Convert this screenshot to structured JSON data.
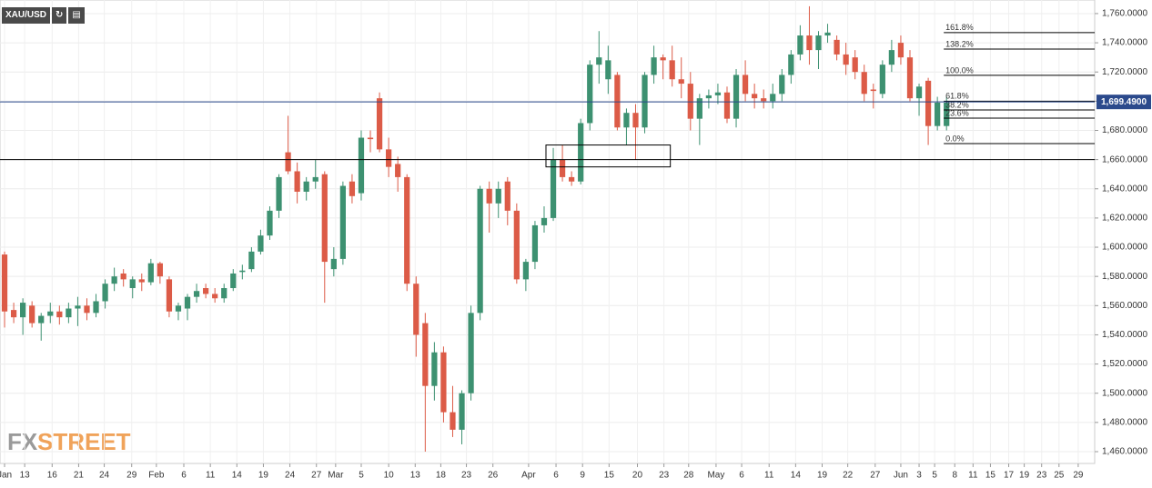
{
  "toolbar": {
    "symbol": "XAU/USD"
  },
  "watermark": [
    "FX",
    "STREET"
  ],
  "chart_data": {
    "type": "candlestick",
    "up_color": "#3d9171",
    "down_color": "#dc5b47",
    "candles": {
      "open": [
        1595,
        1557,
        1552,
        1560,
        1548,
        1553,
        1556,
        1552,
        1558,
        1560,
        1555,
        1563,
        1575,
        1582,
        1572,
        1578,
        1576,
        1589,
        1578,
        1556,
        1558,
        1566,
        1572,
        1568,
        1565,
        1572,
        1583,
        1585,
        1597,
        1608,
        1625,
        1665,
        1652,
        1638,
        1645,
        1650,
        1585,
        1592,
        1645,
        1637,
        1675,
        1702,
        1667,
        1657,
        1648,
        1575,
        1548,
        1505,
        1528,
        1487,
        1475,
        1500,
        1555,
        1640,
        1630,
        1645,
        1625,
        1578,
        1590,
        1615,
        1620,
        1660,
        1648,
        1645,
        1685,
        1725,
        1715,
        1718,
        1682,
        1692,
        1682,
        1718,
        1730,
        1728,
        1715,
        1712,
        1688,
        1702,
        1704,
        1706,
        1688,
        1718,
        1705,
        1702,
        1700,
        1705,
        1718,
        1732,
        1745,
        1735,
        1745,
        1742,
        1732,
        1730,
        1720,
        1708,
        1705,
        1725,
        1740,
        1730,
        1702,
        1714,
        1683,
        1683
      ],
      "high": [
        1597,
        1562,
        1565,
        1563,
        1555,
        1562,
        1560,
        1562,
        1566,
        1565,
        1568,
        1578,
        1586,
        1585,
        1580,
        1582,
        1592,
        1590,
        1580,
        1562,
        1568,
        1575,
        1575,
        1572,
        1575,
        1585,
        1588,
        1600,
        1612,
        1628,
        1650,
        1690,
        1658,
        1648,
        1660,
        1652,
        1600,
        1645,
        1650,
        1680,
        1680,
        1706,
        1675,
        1662,
        1650,
        1580,
        1555,
        1535,
        1532,
        1505,
        1502,
        1560,
        1642,
        1645,
        1645,
        1648,
        1630,
        1592,
        1618,
        1628,
        1668,
        1670,
        1652,
        1688,
        1728,
        1748,
        1738,
        1720,
        1695,
        1698,
        1720,
        1738,
        1732,
        1738,
        1730,
        1720,
        1705,
        1708,
        1712,
        1710,
        1722,
        1728,
        1712,
        1708,
        1712,
        1722,
        1735,
        1752,
        1765,
        1748,
        1753,
        1745,
        1740,
        1735,
        1725,
        1712,
        1728,
        1742,
        1745,
        1735,
        1712,
        1716,
        1703,
        1703
      ],
      "low": [
        1545,
        1548,
        1540,
        1545,
        1536,
        1548,
        1547,
        1548,
        1546,
        1550,
        1552,
        1558,
        1570,
        1573,
        1565,
        1570,
        1574,
        1575,
        1552,
        1550,
        1550,
        1562,
        1565,
        1562,
        1562,
        1570,
        1578,
        1583,
        1595,
        1605,
        1620,
        1650,
        1630,
        1632,
        1640,
        1562,
        1580,
        1588,
        1630,
        1632,
        1665,
        1665,
        1648,
        1638,
        1570,
        1525,
        1460,
        1495,
        1480,
        1470,
        1465,
        1495,
        1550,
        1610,
        1620,
        1615,
        1575,
        1570,
        1585,
        1610,
        1618,
        1645,
        1642,
        1643,
        1680,
        1712,
        1705,
        1680,
        1670,
        1660,
        1678,
        1712,
        1715,
        1710,
        1702,
        1680,
        1670,
        1695,
        1698,
        1685,
        1682,
        1700,
        1695,
        1695,
        1695,
        1700,
        1712,
        1728,
        1725,
        1722,
        1740,
        1728,
        1718,
        1715,
        1700,
        1695,
        1702,
        1720,
        1725,
        1700,
        1690,
        1670,
        1680,
        1680
      ],
      "close": [
        1556,
        1552,
        1562,
        1548,
        1553,
        1556,
        1552,
        1558,
        1560,
        1555,
        1563,
        1575,
        1580,
        1578,
        1578,
        1576,
        1589,
        1580,
        1556,
        1560,
        1566,
        1570,
        1568,
        1565,
        1572,
        1582,
        1584,
        1597,
        1608,
        1625,
        1648,
        1652,
        1638,
        1645,
        1648,
        1590,
        1592,
        1642,
        1635,
        1675,
        1674,
        1667,
        1655,
        1648,
        1575,
        1540,
        1505,
        1528,
        1487,
        1475,
        1500,
        1555,
        1640,
        1630,
        1640,
        1625,
        1578,
        1590,
        1615,
        1620,
        1660,
        1648,
        1645,
        1685,
        1725,
        1730,
        1728,
        1682,
        1692,
        1682,
        1718,
        1730,
        1728,
        1715,
        1712,
        1688,
        1702,
        1704,
        1706,
        1688,
        1718,
        1705,
        1702,
        1700,
        1705,
        1718,
        1732,
        1745,
        1735,
        1745,
        1747,
        1732,
        1725,
        1720,
        1705,
        1707,
        1725,
        1735,
        1730,
        1702,
        1710,
        1683,
        1699,
        1699
      ]
    },
    "xlim": [
      -0.5,
      119.2
    ],
    "xticks": [
      {
        "value": 0,
        "label": "Jan"
      },
      {
        "value": 2.2,
        "label": "13"
      },
      {
        "value": 5.2,
        "label": "16"
      },
      {
        "value": 8.1,
        "label": "21"
      },
      {
        "value": 10.9,
        "label": "24"
      },
      {
        "value": 13.9,
        "label": "29"
      },
      {
        "value": 16.6,
        "label": "Feb"
      },
      {
        "value": 19.6,
        "label": "6"
      },
      {
        "value": 22.5,
        "label": "11"
      },
      {
        "value": 25.4,
        "label": "14"
      },
      {
        "value": 28.3,
        "label": "19"
      },
      {
        "value": 31.2,
        "label": "24"
      },
      {
        "value": 34.1,
        "label": "27"
      },
      {
        "value": 36.2,
        "label": "Mar"
      },
      {
        "value": 39,
        "label": "5"
      },
      {
        "value": 42,
        "label": "10"
      },
      {
        "value": 44.9,
        "label": "13"
      },
      {
        "value": 47.7,
        "label": "18"
      },
      {
        "value": 50.5,
        "label": "23"
      },
      {
        "value": 53.4,
        "label": "26"
      },
      {
        "value": 57.3,
        "label": "Apr"
      },
      {
        "value": 60.3,
        "label": "6"
      },
      {
        "value": 63.2,
        "label": "9"
      },
      {
        "value": 66.1,
        "label": "15"
      },
      {
        "value": 69.2,
        "label": "20"
      },
      {
        "value": 72.1,
        "label": "23"
      },
      {
        "value": 74.8,
        "label": "28"
      },
      {
        "value": 77.8,
        "label": "May"
      },
      {
        "value": 80.6,
        "label": "6"
      },
      {
        "value": 83.6,
        "label": "11"
      },
      {
        "value": 86.5,
        "label": "14"
      },
      {
        "value": 89.4,
        "label": "19"
      },
      {
        "value": 92.2,
        "label": "22"
      },
      {
        "value": 95.2,
        "label": "27"
      },
      {
        "value": 98,
        "label": "Jun"
      },
      {
        "value": 100,
        "label": "3"
      },
      {
        "value": 101.7,
        "label": "5"
      },
      {
        "value": 103.9,
        "label": "8"
      },
      {
        "value": 105.9,
        "label": "11"
      },
      {
        "value": 107.8,
        "label": "15"
      },
      {
        "value": 109.8,
        "label": "17"
      },
      {
        "value": 111.5,
        "label": "19"
      },
      {
        "value": 113.4,
        "label": "23"
      },
      {
        "value": 115.3,
        "label": "25"
      },
      {
        "value": 117.4,
        "label": "29"
      }
    ],
    "ylim": [
      1451.9,
      1769.3
    ],
    "yticks": [
      {
        "value": 1460,
        "label": "1,460.0000"
      },
      {
        "value": 1480,
        "label": "1,480.0000"
      },
      {
        "value": 1500,
        "label": "1,500.0000"
      },
      {
        "value": 1520,
        "label": "1,520.0000"
      },
      {
        "value": 1540,
        "label": "1,540.0000"
      },
      {
        "value": 1560,
        "label": "1,560.0000"
      },
      {
        "value": 1580,
        "label": "1,580.0000"
      },
      {
        "value": 1600,
        "label": "1,600.0000"
      },
      {
        "value": 1620,
        "label": "1,620.0000"
      },
      {
        "value": 1640,
        "label": "1,640.0000"
      },
      {
        "value": 1660,
        "label": "1,660.0000"
      },
      {
        "value": 1680,
        "label": "1,680.0000"
      },
      {
        "value": 1700,
        "label": "1,700.0000"
      },
      {
        "value": 1720,
        "label": "1,720.0000"
      },
      {
        "value": 1740,
        "label": "1,740.0000"
      },
      {
        "value": 1760,
        "label": "1,760.0000"
      }
    ],
    "grid": true,
    "price_line": {
      "value": 1699.49,
      "label": "1,699.4900",
      "color": "#2b4a8c"
    },
    "support_line": {
      "value": 1660,
      "color": "#000000"
    },
    "box": {
      "x": [
        59.2,
        72.8
      ],
      "y": [
        1655,
        1670
      ]
    },
    "fib_start": 102.7,
    "fib_levels": [
      {
        "value": 1747,
        "label": "161.8%"
      },
      {
        "value": 1735.7,
        "label": "138.2%"
      },
      {
        "value": 1717.7,
        "label": "100.0%"
      },
      {
        "value": 1700,
        "label": "61.8%"
      },
      {
        "value": 1694,
        "label": "38.2%"
      },
      {
        "value": 1688.4,
        "label": "23.6%"
      },
      {
        "value": 1671,
        "label": "0.0%"
      }
    ]
  }
}
